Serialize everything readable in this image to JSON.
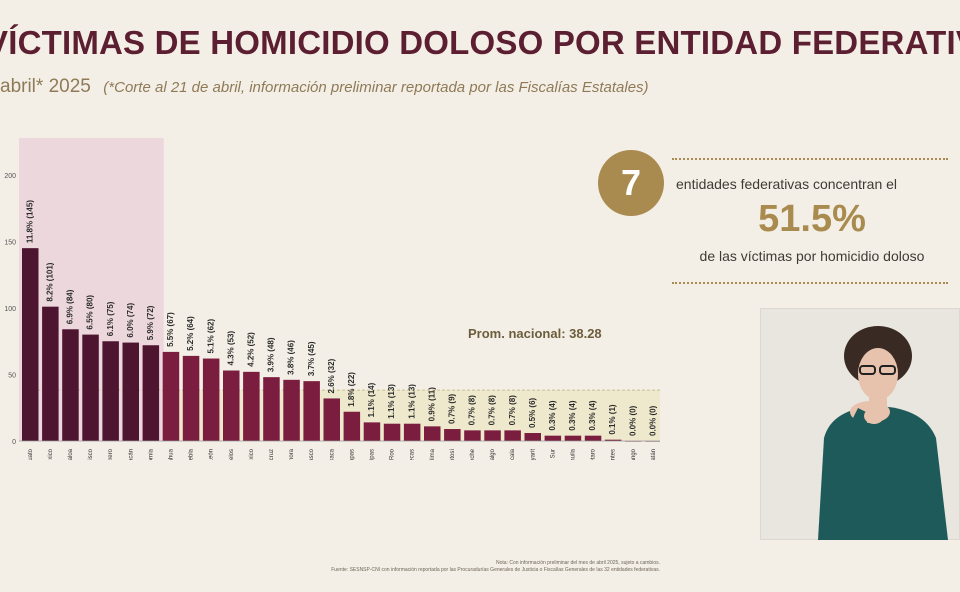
{
  "header": {
    "title": "VÍCTIMAS DE HOMICIDIO DOLOSO POR ENTIDAD FEDERATIVA",
    "period": "abril* 2025",
    "note": "(*Corte al 21 de abril, información preliminar reportada por las Fiscalías Estatales)"
  },
  "callout": {
    "number": "7",
    "line1": "entidades federativas concentran el",
    "percent": "51.5%",
    "line2": "de las víctimas por homicidio doloso"
  },
  "footer": {
    "note": "Nota: Con información preliminar del mes de abril 2025, sujeto a cambios.",
    "source": "Fuente: SESNSP-CNI con información reportada por las Procuradurías Generales de Justicia o Fiscalías Generales de las 32 entidades federativas."
  },
  "colors": {
    "top_bar": "#4e1530",
    "mid_bar": "#7a1d3f",
    "low_bar": "#7a1d3f",
    "highlight_band": "#ecd7dc",
    "average_band": "#ece6c8",
    "accent": "#a98a4f"
  },
  "chart_data": {
    "type": "bar",
    "ylim": [
      0,
      200
    ],
    "yticks": [
      0,
      50,
      100,
      150,
      200
    ],
    "average": {
      "label": "Prom. nacional: 38.28",
      "value": 38.28
    },
    "categories": [
      "Guanajuato",
      "Estado de México",
      "Sinaloa",
      "Jalisco",
      "Guerrero",
      "Michoacán",
      "Baja California",
      "Chihuahua",
      "Puebla",
      "Nuevo León",
      "Morelos",
      "Ciudad de México",
      "Veracruz",
      "Sonora",
      "Tabasco",
      "Oaxaca",
      "Chiapas",
      "Tamaulipas",
      "Quintana Roo",
      "Zacatecas",
      "Colima",
      "San Luis Potosí",
      "Campeche",
      "Hidalgo",
      "Tlaxcala",
      "Nayarit",
      "Baja California Sur",
      "Coahuila",
      "Querétaro",
      "Aguascalientes",
      "Durango",
      "Yucatán"
    ],
    "values": [
      145,
      101,
      84,
      80,
      75,
      74,
      72,
      67,
      64,
      62,
      53,
      52,
      48,
      46,
      45,
      32,
      22,
      14,
      13,
      13,
      11,
      9,
      8,
      8,
      8,
      6,
      4,
      4,
      4,
      1,
      0,
      0
    ],
    "data_labels": [
      "11.8% (145)",
      "8.2% (101)",
      "6.9% (84)",
      "6.5% (80)",
      "6.1% (75)",
      "6.0% (74)",
      "5.9% (72)",
      "5.5% (67)",
      "5.2% (64)",
      "5.1% (62)",
      "4.3% (53)",
      "4.2% (52)",
      "3.9% (48)",
      "3.8% (46)",
      "3.7% (45)",
      "2.6% (32)",
      "1.8% (22)",
      "1.1% (14)",
      "1.1% (13)",
      "1.1% (13)",
      "0.9% (11)",
      "0.7% (9)",
      "0.7% (8)",
      "0.7% (8)",
      "0.7% (8)",
      "0.5% (6)",
      "0.3% (4)",
      "0.3% (4)",
      "0.3% (4)",
      "0.1% (1)",
      "0.0% (0)",
      "0.0% (0)"
    ],
    "highlighted_count": 7
  }
}
